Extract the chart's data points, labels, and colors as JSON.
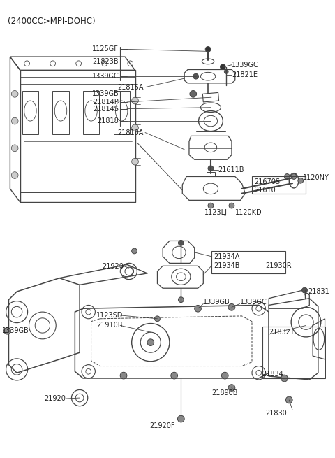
{
  "title": "(2400CC>MPI-DOHC)",
  "bg_color": "#ffffff",
  "line_color": "#444444",
  "text_color": "#222222",
  "title_fontsize": 8.5,
  "label_fontsize": 7.0,
  "top_section": {
    "bracket1_labels": [
      "1125GF",
      "21823B",
      "1339GC"
    ],
    "bracket2_labels": [
      "1339GB",
      "21814P",
      "21814S",
      "21818"
    ],
    "right_labels": [
      "1339GC",
      "21821E"
    ],
    "other_labels": [
      "21815A",
      "21810A",
      "21611B",
      "21670S",
      "21610",
      "1120NY",
      "1123LJ",
      "1120KD"
    ]
  },
  "bottom_section": {
    "labels": [
      "21934A",
      "21934B",
      "21930R",
      "21920",
      "1339GB",
      "1339GC",
      "21831",
      "1123SD",
      "21910B",
      "1339GB",
      "21832T",
      "21834",
      "21920",
      "21920F",
      "21890B",
      "21830"
    ]
  }
}
